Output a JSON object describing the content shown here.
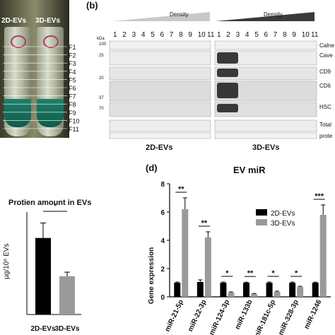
{
  "panel_a": {
    "tube_labels": [
      "2D-EVs",
      "3D-EVs"
    ],
    "fractions": [
      "F1",
      "F2",
      "F3",
      "F4",
      "F5",
      "F6",
      "F7",
      "F8",
      "F9",
      "F10",
      "F11"
    ]
  },
  "panel_b": {
    "label": "(b)",
    "density_label": "Density",
    "kda_label": "kDa",
    "lanes": [
      "1",
      "2",
      "3",
      "4",
      "5",
      "6",
      "7",
      "8",
      "9",
      "10",
      "11"
    ],
    "markers": [
      "100",
      "25",
      "20",
      "37",
      "70"
    ],
    "row_labels": [
      "Calne",
      "Cave",
      "CD9",
      "CD6",
      "HSC",
      "Total",
      "prote"
    ],
    "group_labels": [
      "2D-EVs",
      "3D-EVs"
    ]
  },
  "chart_data": [
    {
      "type": "bar",
      "title": "Protien amount in EVs",
      "ylabel": "µg/10⁶ EVs",
      "categories": [
        "2D-EVs",
        "3D-EVs"
      ],
      "values": [
        0.112,
        0.056
      ],
      "errors": [
        0.022,
        0.006
      ],
      "colors": [
        "#000000",
        "#9a9a9a"
      ],
      "ylim": [
        0,
        0.15
      ],
      "significance": "*"
    },
    {
      "type": "bar",
      "panel_label": "(d)",
      "title": "EV miR",
      "ylabel": "Gene expression",
      "xlabel": "",
      "categories": [
        "miR-21-5p",
        "miR-22-3p",
        "miR-124-3p",
        "miR-133b",
        "miR-181c-5p",
        "miR-328-3p",
        "miR-1246"
      ],
      "yticks": [
        0,
        2,
        4,
        6,
        8
      ],
      "ylim": [
        0,
        8
      ],
      "legend_position": "right",
      "series": [
        {
          "name": "2D-EVs",
          "color": "#000000",
          "values": [
            1.0,
            1.05,
            1.0,
            1.0,
            1.0,
            1.0,
            1.0
          ],
          "errors": [
            0.05,
            0.15,
            0.05,
            0.04,
            0.05,
            0.05,
            0.04
          ]
        },
        {
          "name": "3D-EVs",
          "color": "#9a9a9a",
          "values": [
            6.2,
            4.2,
            0.3,
            0.2,
            0.35,
            0.7,
            5.8
          ],
          "errors": [
            0.8,
            0.4,
            0.05,
            0.04,
            0.05,
            0.05,
            0.7
          ]
        }
      ],
      "significance": [
        "**",
        "**",
        "*",
        "**",
        "*",
        "*",
        "***"
      ]
    }
  ]
}
